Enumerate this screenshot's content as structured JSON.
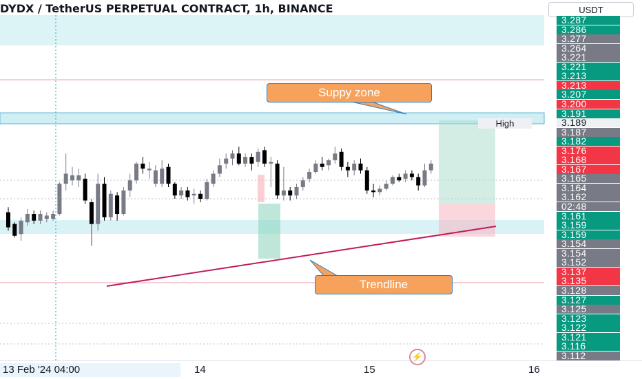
{
  "header": {
    "title": "DYDX / TetherUS PERPETUAL CONTRACT, 1h, BINANCE",
    "currency_button": "USDT"
  },
  "annotations": {
    "supply_zone": "Suppy zone",
    "trendline": "Trendline",
    "high_tag": "High"
  },
  "colors": {
    "up": "#089981",
    "down": "#f23645",
    "gray": "#787b86",
    "zone": "#cfeff4",
    "trendline": "#c2185b",
    "callout": "#f7a25c"
  },
  "price_scale": [
    {
      "text": "3.287",
      "color": "#089981"
    },
    {
      "text": "3.286",
      "color": "#089981"
    },
    {
      "text": "3.277",
      "color": "#787b86"
    },
    {
      "text": "3.264",
      "color": "#787b86"
    },
    {
      "text": "3.221",
      "color": "#787b86"
    },
    {
      "text": "3.221",
      "color": "#089981"
    },
    {
      "text": "3.213",
      "color": "#089981"
    },
    {
      "text": "3.213",
      "color": "#f23645"
    },
    {
      "text": "3.207",
      "color": "#089981"
    },
    {
      "text": "3.200",
      "color": "#f23645"
    },
    {
      "text": "3.191",
      "color": "#089981"
    },
    {
      "text": "3.189",
      "color": "#eef0f4"
    },
    {
      "text": "3.187",
      "color": "#787b86"
    },
    {
      "text": "3.182",
      "color": "#089981"
    },
    {
      "text": "3.176",
      "color": "#f23645"
    },
    {
      "text": "3.168",
      "color": "#f23645"
    },
    {
      "text": "3.167",
      "color": "#f23645"
    },
    {
      "text": "3.165",
      "color": "#787b86"
    },
    {
      "text": "3.164",
      "color": "#787b86"
    },
    {
      "text": "3.162",
      "color": "#787b86"
    },
    {
      "text": "02:48",
      "color": "#787b86"
    },
    {
      "text": "3.161",
      "color": "#089981"
    },
    {
      "text": "3.159",
      "color": "#089981"
    },
    {
      "text": "3.159",
      "color": "#089981"
    },
    {
      "text": "3.154",
      "color": "#787b86"
    },
    {
      "text": "3.154",
      "color": "#787b86"
    },
    {
      "text": "3.152",
      "color": "#787b86"
    },
    {
      "text": "3.137",
      "color": "#f23645"
    },
    {
      "text": "3.135",
      "color": "#f23645"
    },
    {
      "text": "3.128",
      "color": "#787b86"
    },
    {
      "text": "3.127",
      "color": "#089981"
    },
    {
      "text": "3.125",
      "color": "#787b86"
    },
    {
      "text": "3.123",
      "color": "#089981"
    },
    {
      "text": "3.122",
      "color": "#089981"
    },
    {
      "text": "3.121",
      "color": "#089981"
    },
    {
      "text": "3.116",
      "color": "#089981"
    },
    {
      "text": "3.112",
      "color": "#787b86"
    }
  ],
  "time_axis": {
    "cursor_label": "13 Feb '24  04:00",
    "ticks": [
      "14",
      "15",
      "16"
    ]
  },
  "chart_data": {
    "type": "candlestick",
    "symbol": "DYDX / TetherUS PERPETUAL CONTRACT",
    "interval": "1h",
    "candles": [
      {
        "o": 3.135,
        "h": 3.138,
        "l": 3.124,
        "c": 3.126,
        "color": "down"
      },
      {
        "o": 3.128,
        "h": 3.129,
        "l": 3.12,
        "c": 3.121,
        "color": "down"
      },
      {
        "o": 3.122,
        "h": 3.132,
        "l": 3.118,
        "c": 3.13,
        "color": "gray"
      },
      {
        "o": 3.129,
        "h": 3.137,
        "l": 3.127,
        "c": 3.134,
        "color": "gray"
      },
      {
        "o": 3.134,
        "h": 3.136,
        "l": 3.128,
        "c": 3.13,
        "color": "down"
      },
      {
        "o": 3.13,
        "h": 3.136,
        "l": 3.128,
        "c": 3.134,
        "color": "gray"
      },
      {
        "o": 3.133,
        "h": 3.135,
        "l": 3.129,
        "c": 3.131,
        "color": "gray"
      },
      {
        "o": 3.131,
        "h": 3.136,
        "l": 3.13,
        "c": 3.134,
        "color": "gray"
      },
      {
        "o": 3.134,
        "h": 3.153,
        "l": 3.133,
        "c": 3.152,
        "color": "gray"
      },
      {
        "o": 3.152,
        "h": 3.17,
        "l": 3.148,
        "c": 3.158,
        "color": "gray"
      },
      {
        "o": 3.157,
        "h": 3.162,
        "l": 3.151,
        "c": 3.154,
        "color": "gray"
      },
      {
        "o": 3.154,
        "h": 3.161,
        "l": 3.15,
        "c": 3.157,
        "color": "gray"
      },
      {
        "o": 3.155,
        "h": 3.158,
        "l": 3.14,
        "c": 3.142,
        "color": "down"
      },
      {
        "o": 3.141,
        "h": 3.143,
        "l": 3.115,
        "c": 3.128,
        "color": "down"
      },
      {
        "o": 3.128,
        "h": 3.158,
        "l": 3.124,
        "c": 3.152,
        "color": "gray"
      },
      {
        "o": 3.152,
        "h": 3.156,
        "l": 3.13,
        "c": 3.132,
        "color": "down"
      },
      {
        "o": 3.132,
        "h": 3.148,
        "l": 3.13,
        "c": 3.146,
        "color": "gray"
      },
      {
        "o": 3.145,
        "h": 3.147,
        "l": 3.13,
        "c": 3.134,
        "color": "down"
      },
      {
        "o": 3.134,
        "h": 3.15,
        "l": 3.133,
        "c": 3.148,
        "color": "gray"
      },
      {
        "o": 3.148,
        "h": 3.158,
        "l": 3.144,
        "c": 3.154,
        "color": "gray"
      },
      {
        "o": 3.154,
        "h": 3.165,
        "l": 3.152,
        "c": 3.164,
        "color": "gray"
      },
      {
        "o": 3.164,
        "h": 3.168,
        "l": 3.158,
        "c": 3.161,
        "color": "down"
      },
      {
        "o": 3.161,
        "h": 3.165,
        "l": 3.155,
        "c": 3.16,
        "color": "gray"
      },
      {
        "o": 3.16,
        "h": 3.163,
        "l": 3.15,
        "c": 3.152,
        "color": "gray"
      },
      {
        "o": 3.152,
        "h": 3.166,
        "l": 3.15,
        "c": 3.161,
        "color": "gray"
      },
      {
        "o": 3.162,
        "h": 3.164,
        "l": 3.15,
        "c": 3.152,
        "color": "down"
      },
      {
        "o": 3.152,
        "h": 3.153,
        "l": 3.143,
        "c": 3.145,
        "color": "down"
      },
      {
        "o": 3.145,
        "h": 3.15,
        "l": 3.143,
        "c": 3.148,
        "color": "gray"
      },
      {
        "o": 3.148,
        "h": 3.15,
        "l": 3.142,
        "c": 3.144,
        "color": "down"
      },
      {
        "o": 3.145,
        "h": 3.149,
        "l": 3.14,
        "c": 3.146,
        "color": "gray"
      },
      {
        "o": 3.146,
        "h": 3.148,
        "l": 3.141,
        "c": 3.143,
        "color": "down"
      },
      {
        "o": 3.143,
        "h": 3.155,
        "l": 3.142,
        "c": 3.153,
        "color": "gray"
      },
      {
        "o": 3.152,
        "h": 3.16,
        "l": 3.15,
        "c": 3.158,
        "color": "gray"
      },
      {
        "o": 3.158,
        "h": 3.167,
        "l": 3.156,
        "c": 3.163,
        "color": "gray"
      },
      {
        "o": 3.164,
        "h": 3.17,
        "l": 3.161,
        "c": 3.167,
        "color": "gray"
      },
      {
        "o": 3.167,
        "h": 3.172,
        "l": 3.163,
        "c": 3.17,
        "color": "gray"
      },
      {
        "o": 3.17,
        "h": 3.174,
        "l": 3.163,
        "c": 3.164,
        "color": "down"
      },
      {
        "o": 3.164,
        "h": 3.17,
        "l": 3.162,
        "c": 3.168,
        "color": "gray"
      },
      {
        "o": 3.168,
        "h": 3.17,
        "l": 3.16,
        "c": 3.164,
        "color": "down"
      },
      {
        "o": 3.165,
        "h": 3.173,
        "l": 3.162,
        "c": 3.171,
        "color": "gray"
      },
      {
        "o": 3.172,
        "h": 3.174,
        "l": 3.162,
        "c": 3.164,
        "color": "down"
      },
      {
        "o": 3.165,
        "h": 3.168,
        "l": 3.15,
        "c": 3.164,
        "color": "gray"
      },
      {
        "o": 3.164,
        "h": 3.166,
        "l": 3.143,
        "c": 3.145,
        "color": "down"
      },
      {
        "o": 3.145,
        "h": 3.162,
        "l": 3.142,
        "c": 3.148,
        "color": "gray"
      },
      {
        "o": 3.148,
        "h": 3.15,
        "l": 3.142,
        "c": 3.145,
        "color": "down"
      },
      {
        "o": 3.145,
        "h": 3.152,
        "l": 3.143,
        "c": 3.15,
        "color": "gray"
      },
      {
        "o": 3.15,
        "h": 3.156,
        "l": 3.148,
        "c": 3.154,
        "color": "gray"
      },
      {
        "o": 3.155,
        "h": 3.161,
        "l": 3.153,
        "c": 3.159,
        "color": "gray"
      },
      {
        "o": 3.159,
        "h": 3.166,
        "l": 3.158,
        "c": 3.164,
        "color": "gray"
      },
      {
        "o": 3.164,
        "h": 3.168,
        "l": 3.16,
        "c": 3.162,
        "color": "down"
      },
      {
        "o": 3.163,
        "h": 3.167,
        "l": 3.16,
        "c": 3.166,
        "color": "gray"
      },
      {
        "o": 3.166,
        "h": 3.174,
        "l": 3.164,
        "c": 3.17,
        "color": "gray"
      },
      {
        "o": 3.171,
        "h": 3.173,
        "l": 3.16,
        "c": 3.162,
        "color": "down"
      },
      {
        "o": 3.162,
        "h": 3.165,
        "l": 3.156,
        "c": 3.16,
        "color": "down"
      },
      {
        "o": 3.16,
        "h": 3.166,
        "l": 3.157,
        "c": 3.164,
        "color": "gray"
      },
      {
        "o": 3.164,
        "h": 3.167,
        "l": 3.158,
        "c": 3.16,
        "color": "down"
      },
      {
        "o": 3.16,
        "h": 3.162,
        "l": 3.146,
        "c": 3.148,
        "color": "down"
      },
      {
        "o": 3.148,
        "h": 3.152,
        "l": 3.144,
        "c": 3.147,
        "color": "down"
      },
      {
        "o": 3.147,
        "h": 3.151,
        "l": 3.145,
        "c": 3.149,
        "color": "gray"
      },
      {
        "o": 3.149,
        "h": 3.154,
        "l": 3.148,
        "c": 3.152,
        "color": "gray"
      },
      {
        "o": 3.152,
        "h": 3.157,
        "l": 3.151,
        "c": 3.156,
        "color": "gray"
      },
      {
        "o": 3.156,
        "h": 3.158,
        "l": 3.153,
        "c": 3.154,
        "color": "down"
      },
      {
        "o": 3.155,
        "h": 3.16,
        "l": 3.153,
        "c": 3.158,
        "color": "gray"
      },
      {
        "o": 3.158,
        "h": 3.16,
        "l": 3.154,
        "c": 3.156,
        "color": "down"
      },
      {
        "o": 3.156,
        "h": 3.158,
        "l": 3.148,
        "c": 3.151,
        "color": "down"
      },
      {
        "o": 3.151,
        "h": 3.164,
        "l": 3.15,
        "c": 3.16,
        "color": "gray"
      },
      {
        "o": 3.16,
        "h": 3.166,
        "l": 3.158,
        "c": 3.164,
        "color": "gray"
      }
    ],
    "supply_zone": {
      "low": 3.189,
      "high": 3.191
    },
    "top_zone": {
      "low": 3.27,
      "high": 3.3
    },
    "demand_zone": {
      "low": 3.159,
      "high": 3.161
    },
    "trendline_label": "Trendline",
    "supply_label": "Suppy zone",
    "ylim": [
      3.108,
      3.3
    ]
  }
}
